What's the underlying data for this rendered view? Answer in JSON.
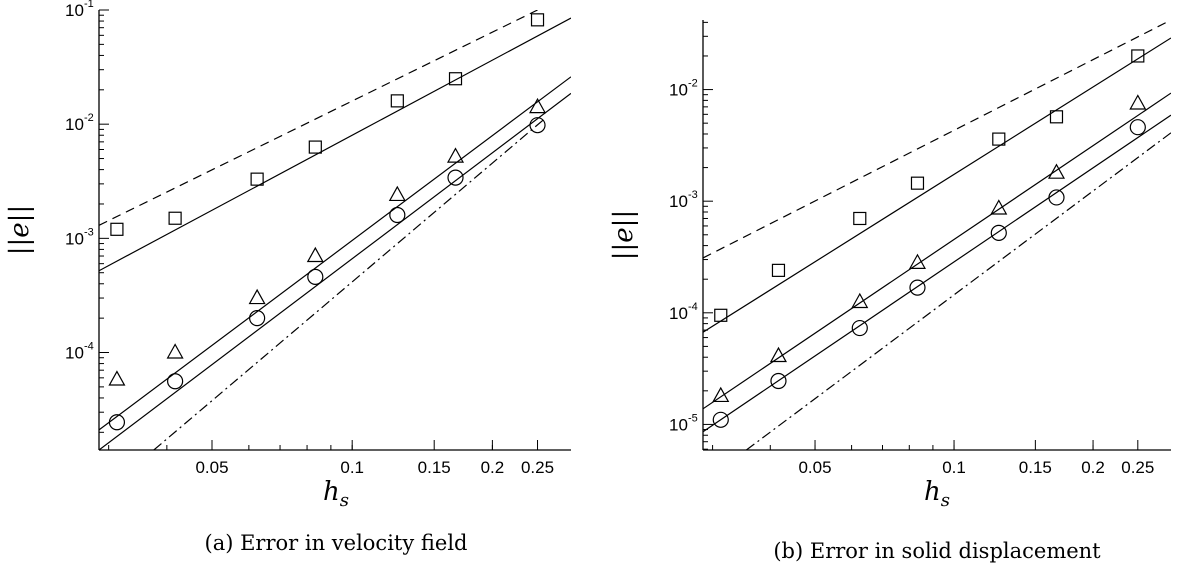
{
  "chart_data": [
    {
      "type": "scatter",
      "subplot": "a",
      "caption": "(a) Error in velocity field",
      "xlabel": "h_s",
      "ylabel": "||e||",
      "xscale": "log",
      "yscale": "log",
      "xlim": [
        0.0286,
        0.295
      ],
      "ylim": [
        1.4e-05,
        0.1
      ],
      "xticks": [
        0.05,
        0.1,
        0.15,
        0.2,
        0.25
      ],
      "xtick_labels": [
        "0.05",
        "0.1",
        "0.15",
        "0.2",
        "0.25"
      ],
      "yticks": [
        0.0001,
        0.001,
        0.01,
        0.1
      ],
      "ytick_base": [
        "10",
        "10",
        "10",
        "10"
      ],
      "ytick_exp": [
        "-4",
        "-3",
        "-2",
        "-1"
      ],
      "grid": false,
      "series": [
        {
          "marker": "square",
          "x": [
            0.03125,
            0.041667,
            0.0625,
            0.083333,
            0.125,
            0.166667,
            0.25
          ],
          "y": [
            0.0012,
            0.0015,
            0.0033,
            0.0063,
            0.016,
            0.025,
            0.082
          ]
        },
        {
          "marker": "triangle",
          "x": [
            0.03125,
            0.041667,
            0.0625,
            0.083333,
            0.125,
            0.166667,
            0.25
          ],
          "y": [
            5.8e-05,
            0.0001,
            0.0003,
            0.0007,
            0.0024,
            0.0052,
            0.0141
          ]
        },
        {
          "marker": "circle",
          "x": [
            0.03125,
            0.041667,
            0.0625,
            0.083333,
            0.125,
            0.166667,
            0.25
          ],
          "y": [
            2.45e-05,
            5.6e-05,
            0.0002,
            0.00046,
            0.0016,
            0.0034,
            0.0098
          ]
        }
      ],
      "lines": [
        {
          "style": "solid",
          "x": [
            0.0286,
            0.295
          ],
          "y": [
            0.00052,
            0.085
          ]
        },
        {
          "style": "solid",
          "x": [
            0.0286,
            0.295
          ],
          "y": [
            2.1e-05,
            0.026
          ]
        },
        {
          "style": "solid",
          "x": [
            0.0286,
            0.295
          ],
          "y": [
            1.4e-05,
            0.0186
          ]
        },
        {
          "style": "dashed",
          "x": [
            0.0286,
            0.25
          ],
          "y": [
            0.0013,
            0.1
          ]
        },
        {
          "style": "dashdot",
          "x": [
            0.0375,
            0.26
          ],
          "y": [
            1.4e-05,
            0.0113
          ]
        }
      ]
    },
    {
      "type": "scatter",
      "subplot": "b",
      "caption": "(b) Error in solid displacement",
      "xlabel": "h_s",
      "ylabel": "||e||",
      "xscale": "log",
      "yscale": "log",
      "xlim": [
        0.0286,
        0.295
      ],
      "ylim": [
        5.9e-06,
        0.042
      ],
      "xticks": [
        0.05,
        0.1,
        0.15,
        0.2,
        0.25
      ],
      "xtick_labels": [
        "0.05",
        "0.1",
        "0.15",
        "0.2",
        "0.25"
      ],
      "yticks": [
        1e-05,
        0.0001,
        0.001,
        0.01
      ],
      "ytick_base": [
        "10",
        "10",
        "10",
        "10"
      ],
      "ytick_exp": [
        "-5",
        "-4",
        "-3",
        "-2"
      ],
      "grid": false,
      "series": [
        {
          "marker": "square",
          "x": [
            0.03125,
            0.041667,
            0.0625,
            0.083333,
            0.125,
            0.166667,
            0.25
          ],
          "y": [
            9.5e-05,
            0.00024,
            0.0007,
            0.00145,
            0.0036,
            0.0057,
            0.02
          ]
        },
        {
          "marker": "triangle",
          "x": [
            0.03125,
            0.041667,
            0.0625,
            0.083333,
            0.125,
            0.166667,
            0.25
          ],
          "y": [
            1.8e-05,
            4.1e-05,
            0.000125,
            0.00028,
            0.00086,
            0.0018,
            0.0075
          ]
        },
        {
          "marker": "circle",
          "x": [
            0.03125,
            0.041667,
            0.0625,
            0.083333,
            0.125,
            0.166667,
            0.25
          ],
          "y": [
            1.1e-05,
            2.45e-05,
            7.3e-05,
            0.000168,
            0.00052,
            0.00108,
            0.0046
          ]
        }
      ],
      "lines": [
        {
          "style": "solid",
          "x": [
            0.0286,
            0.295
          ],
          "y": [
            6.7e-05,
            0.029
          ]
        },
        {
          "style": "solid",
          "x": [
            0.0286,
            0.295
          ],
          "y": [
            1.38e-05,
            0.0093
          ]
        },
        {
          "style": "solid",
          "x": [
            0.0286,
            0.295
          ],
          "y": [
            8.6e-06,
            0.0059
          ]
        },
        {
          "style": "dashed",
          "x": [
            0.0286,
            0.295
          ],
          "y": [
            0.00031,
            0.042
          ]
        },
        {
          "style": "dashdot",
          "x": [
            0.0355,
            0.295
          ],
          "y": [
            5.9e-06,
            0.0041
          ]
        }
      ]
    }
  ]
}
